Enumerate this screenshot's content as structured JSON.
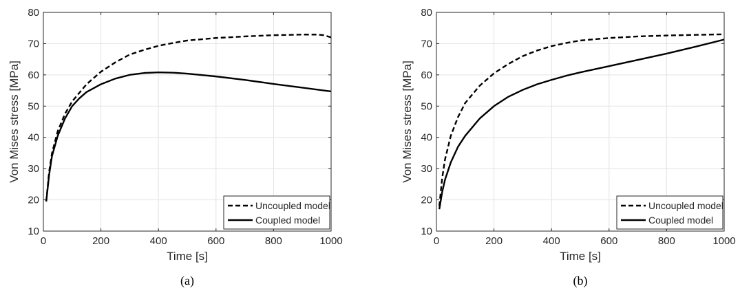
{
  "chart_data": [
    {
      "type": "line",
      "caption": "(a)",
      "xlabel": "Time [s]",
      "ylabel": "Von Mises stress [MPa]",
      "xlim": [
        0,
        1000
      ],
      "ylim": [
        10,
        80
      ],
      "xticks": [
        0,
        200,
        400,
        600,
        800,
        1000
      ],
      "yticks": [
        10,
        20,
        30,
        40,
        50,
        60,
        70,
        80
      ],
      "grid": true,
      "legend_position": "bottom-right",
      "series": [
        {
          "name": "Uncoupled model",
          "style": "dashed",
          "color": "#000000",
          "x": [
            10,
            20,
            30,
            50,
            75,
            100,
            150,
            200,
            250,
            300,
            350,
            400,
            450,
            500,
            600,
            700,
            800,
            900,
            950,
            975,
            1000
          ],
          "y": [
            19.5,
            29,
            35,
            42,
            47.5,
            51.5,
            57,
            61,
            64,
            66.5,
            68,
            69.3,
            70.2,
            71,
            71.8,
            72.3,
            72.7,
            72.9,
            72.9,
            72.7,
            72
          ]
        },
        {
          "name": "Coupled model",
          "style": "solid",
          "color": "#000000",
          "x": [
            10,
            20,
            30,
            50,
            75,
            100,
            125,
            150,
            200,
            250,
            300,
            350,
            400,
            450,
            500,
            600,
            700,
            800,
            900,
            1000
          ],
          "y": [
            19.5,
            28,
            34,
            40.5,
            46,
            50,
            52.5,
            54.5,
            57,
            58.8,
            60,
            60.6,
            60.8,
            60.7,
            60.4,
            59.5,
            58.4,
            57.1,
            55.9,
            54.7
          ]
        }
      ]
    },
    {
      "type": "line",
      "caption": "(b)",
      "xlabel": "Time [s]",
      "ylabel": "Von Mises stress [MPa]",
      "xlim": [
        0,
        1000
      ],
      "ylim": [
        10,
        80
      ],
      "xticks": [
        0,
        200,
        400,
        600,
        800,
        1000
      ],
      "yticks": [
        10,
        20,
        30,
        40,
        50,
        60,
        70,
        80
      ],
      "grid": true,
      "legend_position": "bottom-right",
      "series": [
        {
          "name": "Uncoupled model",
          "style": "dashed",
          "color": "#000000",
          "x": [
            10,
            20,
            30,
            50,
            75,
            100,
            150,
            200,
            250,
            300,
            350,
            400,
            450,
            500,
            600,
            700,
            800,
            900,
            1000
          ],
          "y": [
            18,
            27,
            33,
            40.5,
            46.5,
            51,
            56.5,
            60.5,
            63.5,
            66,
            67.8,
            69.2,
            70.2,
            71,
            71.8,
            72.3,
            72.6,
            72.8,
            73
          ]
        },
        {
          "name": "Coupled model",
          "style": "solid",
          "color": "#000000",
          "x": [
            10,
            20,
            30,
            50,
            75,
            100,
            150,
            200,
            250,
            300,
            350,
            400,
            450,
            500,
            600,
            700,
            800,
            900,
            1000
          ],
          "y": [
            17,
            22.5,
            26.5,
            32,
            37,
            40.5,
            46,
            50,
            53,
            55.2,
            57,
            58.4,
            59.7,
            60.8,
            62.8,
            64.8,
            66.8,
            69,
            71.3
          ]
        }
      ]
    }
  ]
}
